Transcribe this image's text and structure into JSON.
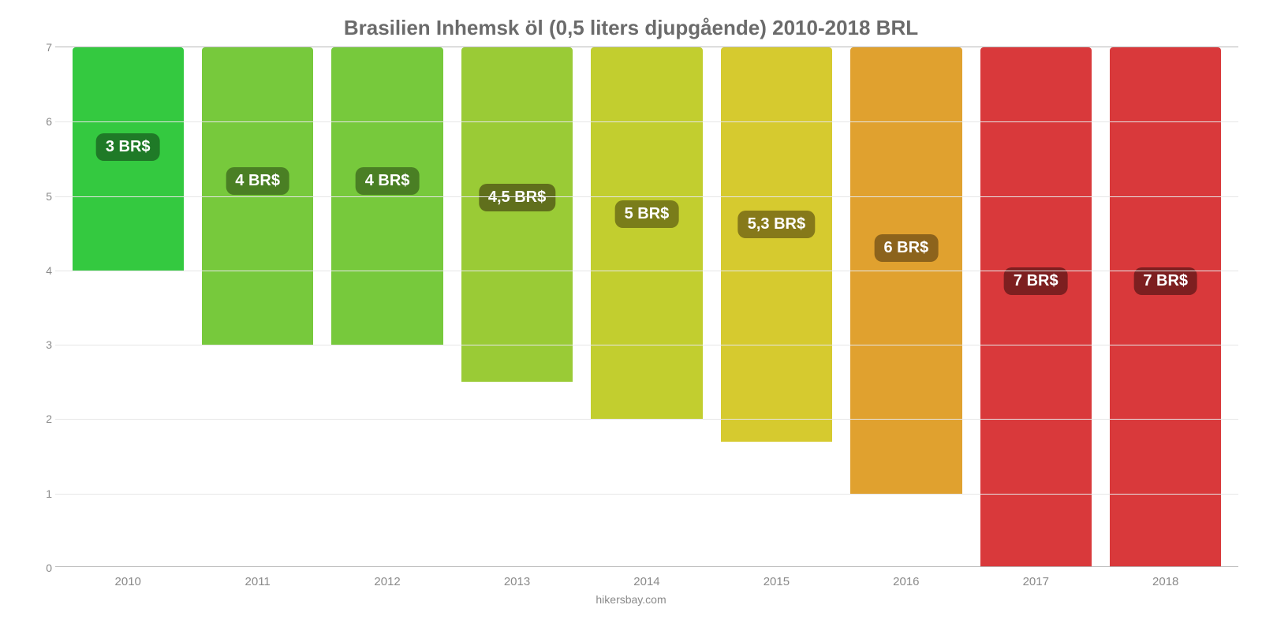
{
  "chart": {
    "type": "bar",
    "title": "Brasilien Inhemsk öl (0,5 liters djupgående) 2010-2018 BRL",
    "title_color": "#6b6b6b",
    "title_fontsize": 26,
    "attribution": "hikersbay.com",
    "attribution_color": "#8a8a8a",
    "attribution_fontsize": 14,
    "background_color": "#ffffff",
    "axis_line_color": "#b7b7b7",
    "grid_color": "#e6e6e6",
    "tick_color": "#8a8a8a",
    "tick_fontsize": 14,
    "xtick_fontsize": 15,
    "ylim": [
      0,
      7
    ],
    "ytick_step": 1,
    "yticks": [
      "0",
      "1",
      "2",
      "3",
      "4",
      "5",
      "6",
      "7"
    ],
    "bar_width_pct": 86,
    "data_label_fontsize": 20,
    "data_label_radius": 10,
    "categories": [
      "2010",
      "2011",
      "2012",
      "2013",
      "2014",
      "2015",
      "2016",
      "2017",
      "2018"
    ],
    "values": [
      3,
      4,
      4,
      4.5,
      5,
      5.3,
      6,
      7,
      7
    ],
    "value_labels": [
      "3 BR$",
      "4 BR$",
      "4 BR$",
      "4,5 BR$",
      "5 BR$",
      "5,3 BR$",
      "6 BR$",
      "7 BR$",
      "7 BR$"
    ],
    "bar_colors": [
      "#34c940",
      "#77c93c",
      "#77c93c",
      "#9acb36",
      "#c2ce2f",
      "#d6ca2f",
      "#e0a12f",
      "#d9393b",
      "#d9393b"
    ],
    "label_bg_colors": [
      "#1f7a27",
      "#4a7f24",
      "#4a7f24",
      "#606f1c",
      "#7a7d1a",
      "#86791a",
      "#8c631c",
      "#7d1f20",
      "#7d1f20"
    ]
  }
}
